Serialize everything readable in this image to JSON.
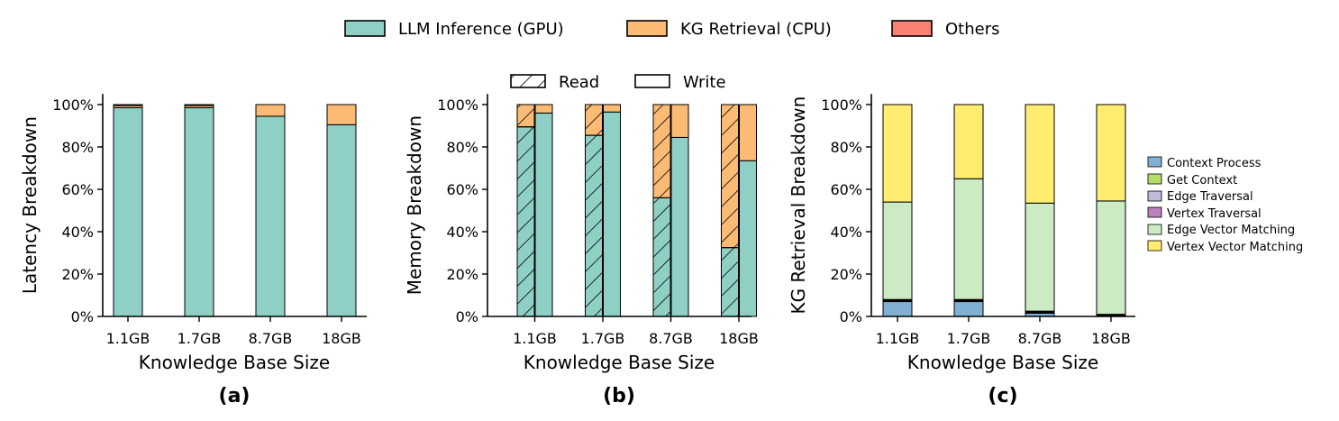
{
  "figure_legend": [
    {
      "label": "LLM Inference (GPU)",
      "color": "#8ecfc6"
    },
    {
      "label": "KG Retrieval (CPU)",
      "color": "#fcbb74"
    },
    {
      "label": "Others",
      "color": "#f98073"
    }
  ],
  "rw_legend": [
    {
      "label": "Read",
      "pattern": "hatch"
    },
    {
      "label": "Write",
      "pattern": "solid"
    }
  ],
  "kg_legend": [
    {
      "label": "Context Process",
      "color": "#80b1d3"
    },
    {
      "label": "Get Context",
      "color": "#b3de69"
    },
    {
      "label": "Edge Traversal",
      "color": "#bebada"
    },
    {
      "label": "Vertex Traversal",
      "color": "#bc80bd"
    },
    {
      "label": "Edge Vector Matching",
      "color": "#ccebc5"
    },
    {
      "label": "Vertex Vector Matching",
      "color": "#ffed6f"
    }
  ],
  "chart_data": [
    {
      "id": "a",
      "panel_label": "(a)",
      "type": "bar",
      "stacked": true,
      "categories": [
        "1.1GB",
        "1.7GB",
        "8.7GB",
        "18GB"
      ],
      "series": [
        {
          "name": "LLM Inference (GPU)",
          "color": "#8ecfc6",
          "values": [
            98.5,
            98.5,
            94.5,
            90.5
          ]
        },
        {
          "name": "KG Retrieval (CPU)",
          "color": "#fcbb74",
          "values": [
            1.0,
            1.0,
            5.5,
            9.5
          ]
        },
        {
          "name": "Others",
          "color": "#f98073",
          "values": [
            0.5,
            0.5,
            0.0,
            0.0
          ]
        }
      ],
      "ylabel": "Latency Breakdown",
      "xlabel": "Knowledge Base Size",
      "yticks": [
        "0%",
        "20%",
        "40%",
        "60%",
        "80%",
        "100%"
      ],
      "ylim": [
        0,
        105
      ]
    },
    {
      "id": "b",
      "panel_label": "(b)",
      "type": "bar",
      "stacked": true,
      "grouped": true,
      "categories": [
        "1.1GB",
        "1.7GB",
        "8.7GB",
        "18GB"
      ],
      "groups": [
        {
          "name": "Read",
          "hatch": true,
          "series": [
            {
              "name": "LLM Inference (GPU)",
              "color": "#8ecfc6",
              "values": [
                89.5,
                85.5,
                56.0,
                32.5
              ]
            },
            {
              "name": "KG Retrieval (CPU)",
              "color": "#fcbb74",
              "values": [
                10.5,
                14.5,
                44.0,
                67.5
              ]
            }
          ]
        },
        {
          "name": "Write",
          "hatch": false,
          "series": [
            {
              "name": "LLM Inference (GPU)",
              "color": "#8ecfc6",
              "values": [
                96.0,
                96.5,
                84.5,
                73.5
              ]
            },
            {
              "name": "KG Retrieval (CPU)",
              "color": "#fcbb74",
              "values": [
                4.0,
                3.5,
                15.5,
                26.5
              ]
            }
          ]
        }
      ],
      "ylabel": "Memory Breakdown",
      "xlabel": "Knowledge Base Size",
      "yticks": [
        "0%",
        "20%",
        "40%",
        "60%",
        "80%",
        "100%"
      ],
      "ylim": [
        0,
        105
      ]
    },
    {
      "id": "c",
      "panel_label": "(c)",
      "type": "bar",
      "stacked": true,
      "categories": [
        "1.1GB",
        "1.7GB",
        "8.7GB",
        "18GB"
      ],
      "series": [
        {
          "name": "Context Process",
          "color": "#80b1d3",
          "values": [
            7.0,
            7.0,
            1.5,
            0.3
          ]
        },
        {
          "name": "Get Context",
          "color": "#b3de69",
          "values": [
            0.3,
            0.3,
            0.3,
            0.2
          ]
        },
        {
          "name": "Edge Traversal",
          "color": "#bebada",
          "values": [
            0.3,
            0.3,
            0.3,
            0.2
          ]
        },
        {
          "name": "Vertex Traversal",
          "color": "#bc80bd",
          "values": [
            0.4,
            0.4,
            0.4,
            0.3
          ]
        },
        {
          "name": "Edge Vector Matching",
          "color": "#ccebc5",
          "values": [
            46.0,
            57.0,
            51.0,
            53.5
          ]
        },
        {
          "name": "Vertex Vector Matching",
          "color": "#ffed6f",
          "values": [
            46.0,
            35.0,
            46.5,
            45.5
          ]
        }
      ],
      "ylabel": "KG Retrieval Breakdown",
      "xlabel": "Knowledge Base Size",
      "yticks": [
        "0%",
        "20%",
        "40%",
        "60%",
        "80%",
        "100%"
      ],
      "ylim": [
        0,
        105
      ]
    }
  ]
}
